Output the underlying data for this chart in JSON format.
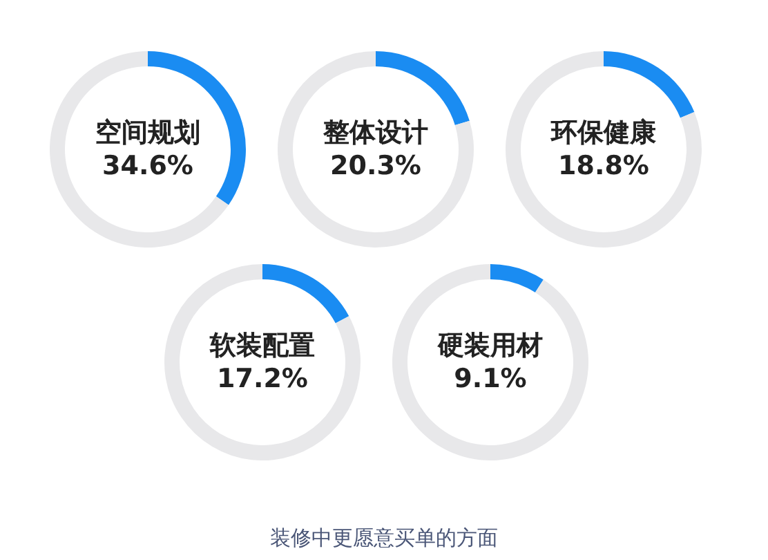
{
  "chart_data": [
    {
      "type": "donut",
      "categories": [
        "空间规划",
        null
      ],
      "values": [
        34.6,
        65.4
      ],
      "value_labels": [
        "34.6%",
        null
      ],
      "colors": [
        "#1a8cf2",
        "#e8e8ea"
      ]
    },
    {
      "type": "donut",
      "categories": [
        "整体设计",
        null
      ],
      "values": [
        20.3,
        79.7
      ],
      "value_labels": [
        "20.3%",
        null
      ],
      "colors": [
        "#1a8cf2",
        "#e8e8ea"
      ]
    },
    {
      "type": "donut",
      "categories": [
        "环保健康",
        null
      ],
      "values": [
        18.8,
        81.2
      ],
      "value_labels": [
        "18.8%",
        null
      ],
      "colors": [
        "#1a8cf2",
        "#e8e8ea"
      ]
    },
    {
      "type": "donut",
      "categories": [
        "软装配置",
        null
      ],
      "values": [
        17.2,
        82.8
      ],
      "value_labels": [
        "17.2%",
        null
      ],
      "colors": [
        "#1a8cf2",
        "#e8e8ea"
      ]
    },
    {
      "type": "donut",
      "categories": [
        "硬装用材",
        null
      ],
      "values": [
        9.1,
        90.9
      ],
      "value_labels": [
        "9.1%",
        null
      ],
      "colors": [
        "#1a8cf2",
        "#e8e8ea"
      ],
      "annotations": [
        "装修中更愿意买单的方面"
      ]
    }
  ]
}
